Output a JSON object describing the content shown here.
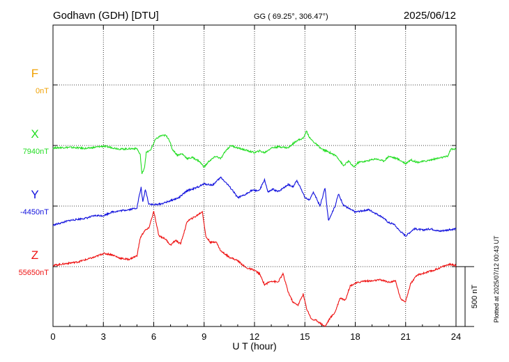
{
  "header": {
    "station": "Godhavn (GDH)  [DTU]",
    "coords": "GG ( 69.25°, 306.47°)",
    "date": "2025/06/12"
  },
  "plotted_note": "Plotted at 2025/07/12 00:43 UT",
  "scale_label": "500 nT",
  "chart_data": {
    "type": "line",
    "xlabel": "U T (hour)",
    "ylabel": "",
    "xlim": [
      0,
      24
    ],
    "xticks": [
      "0",
      "3",
      "6",
      "9",
      "12",
      "15",
      "18",
      "21",
      "24"
    ],
    "grid": true,
    "scale_bar_nT": 500,
    "series": [
      {
        "name": "F",
        "baseline_label": "0nT",
        "color": "#f0a000",
        "points": []
      },
      {
        "name": "X",
        "baseline_label": "7940nT",
        "color": "#22dd22",
        "points": [
          [
            0,
            -20
          ],
          [
            1,
            -15
          ],
          [
            2,
            -25
          ],
          [
            3,
            -5
          ],
          [
            4,
            -30
          ],
          [
            5,
            -25
          ],
          [
            5.2,
            -80
          ],
          [
            5.3,
            -240
          ],
          [
            5.45,
            -180
          ],
          [
            5.55,
            -60
          ],
          [
            5.8,
            -40
          ],
          [
            6.1,
            50
          ],
          [
            6.4,
            80
          ],
          [
            6.7,
            85
          ],
          [
            6.9,
            55
          ],
          [
            7.1,
            -30
          ],
          [
            7.4,
            -80
          ],
          [
            7.7,
            -70
          ],
          [
            8.0,
            -110
          ],
          [
            8.3,
            -100
          ],
          [
            8.7,
            -130
          ],
          [
            9.0,
            -180
          ],
          [
            9.3,
            -130
          ],
          [
            9.7,
            -90
          ],
          [
            10.0,
            -110
          ],
          [
            10.3,
            -40
          ],
          [
            10.6,
            0
          ],
          [
            11.0,
            -20
          ],
          [
            11.5,
            -40
          ],
          [
            12.0,
            -60
          ],
          [
            12.3,
            -45
          ],
          [
            12.6,
            -60
          ],
          [
            13.0,
            -20
          ],
          [
            13.5,
            -10
          ],
          [
            14.0,
            -20
          ],
          [
            14.5,
            40
          ],
          [
            14.9,
            60
          ],
          [
            15.1,
            120
          ],
          [
            15.3,
            60
          ],
          [
            15.6,
            20
          ],
          [
            16.0,
            -30
          ],
          [
            16.5,
            -60
          ],
          [
            16.9,
            -90
          ],
          [
            17.3,
            -170
          ],
          [
            17.6,
            -130
          ],
          [
            17.9,
            -180
          ],
          [
            18.2,
            -140
          ],
          [
            18.7,
            -130
          ],
          [
            19.2,
            -110
          ],
          [
            19.7,
            -130
          ],
          [
            20.0,
            -90
          ],
          [
            20.5,
            -110
          ],
          [
            21.0,
            -150
          ],
          [
            21.3,
            -120
          ],
          [
            21.7,
            -140
          ],
          [
            22.2,
            -130
          ],
          [
            22.8,
            -110
          ],
          [
            23.2,
            -100
          ],
          [
            23.5,
            -90
          ],
          [
            23.7,
            -30
          ],
          [
            24,
            -30
          ]
        ]
      },
      {
        "name": "Y",
        "baseline_label": "-4450nT",
        "color": "#1010dd",
        "points": [
          [
            0,
            -160
          ],
          [
            0.5,
            -140
          ],
          [
            1,
            -120
          ],
          [
            1.5,
            -110
          ],
          [
            2,
            -100
          ],
          [
            2.5,
            -80
          ],
          [
            3,
            -80
          ],
          [
            3.5,
            -50
          ],
          [
            4.0,
            -40
          ],
          [
            4.5,
            -30
          ],
          [
            5.0,
            -15
          ],
          [
            5.1,
            60
          ],
          [
            5.25,
            155
          ],
          [
            5.35,
            30
          ],
          [
            5.5,
            140
          ],
          [
            5.7,
            20
          ],
          [
            6,
            10
          ],
          [
            6.5,
            20
          ],
          [
            7,
            45
          ],
          [
            7.5,
            70
          ],
          [
            8,
            130
          ],
          [
            8.5,
            150
          ],
          [
            9.0,
            185
          ],
          [
            9.5,
            175
          ],
          [
            10.0,
            240
          ],
          [
            10.4,
            180
          ],
          [
            10.7,
            130
          ],
          [
            11.0,
            70
          ],
          [
            11.4,
            90
          ],
          [
            11.8,
            130
          ],
          [
            12.3,
            130
          ],
          [
            12.6,
            220
          ],
          [
            12.8,
            115
          ],
          [
            13.1,
            140
          ],
          [
            13.4,
            120
          ],
          [
            13.7,
            150
          ],
          [
            14.0,
            180
          ],
          [
            14.3,
            160
          ],
          [
            14.5,
            215
          ],
          [
            14.8,
            140
          ],
          [
            15.0,
            70
          ],
          [
            15.3,
            50
          ],
          [
            15.5,
            120
          ],
          [
            15.9,
            0
          ],
          [
            16.2,
            150
          ],
          [
            16.4,
            -120
          ],
          [
            16.6,
            -60
          ],
          [
            16.8,
            0
          ],
          [
            17.0,
            100
          ],
          [
            17.3,
            10
          ],
          [
            17.6,
            -20
          ],
          [
            18.0,
            -50
          ],
          [
            18.4,
            -40
          ],
          [
            18.8,
            -30
          ],
          [
            19.2,
            -60
          ],
          [
            19.6,
            -90
          ],
          [
            20.0,
            -140
          ],
          [
            20.3,
            -150
          ],
          [
            20.6,
            -200
          ],
          [
            21.0,
            -250
          ],
          [
            21.5,
            -190
          ],
          [
            22.0,
            -200
          ],
          [
            22.5,
            -190
          ],
          [
            23.0,
            -210
          ],
          [
            23.5,
            -200
          ],
          [
            24,
            -190
          ]
        ]
      },
      {
        "name": "Z",
        "baseline_label": "55650nT",
        "color": "#ee1111",
        "points": [
          [
            0,
            10
          ],
          [
            0.5,
            20
          ],
          [
            1,
            30
          ],
          [
            1.5,
            40
          ],
          [
            2,
            60
          ],
          [
            2.5,
            80
          ],
          [
            3,
            110
          ],
          [
            3.5,
            100
          ],
          [
            4,
            70
          ],
          [
            4.5,
            60
          ],
          [
            5.0,
            90
          ],
          [
            5.2,
            240
          ],
          [
            5.45,
            300
          ],
          [
            5.7,
            320
          ],
          [
            6.0,
            460
          ],
          [
            6.3,
            260
          ],
          [
            6.7,
            230
          ],
          [
            7.0,
            180
          ],
          [
            7.3,
            220
          ],
          [
            7.6,
            190
          ],
          [
            8.0,
            380
          ],
          [
            8.5,
            420
          ],
          [
            8.9,
            460
          ],
          [
            9.1,
            250
          ],
          [
            9.4,
            200
          ],
          [
            9.7,
            210
          ],
          [
            10.0,
            130
          ],
          [
            10.5,
            80
          ],
          [
            11.0,
            50
          ],
          [
            11.5,
            -10
          ],
          [
            12.0,
            -30
          ],
          [
            12.3,
            -60
          ],
          [
            12.6,
            -150
          ],
          [
            13.0,
            -120
          ],
          [
            13.4,
            -130
          ],
          [
            13.7,
            -60
          ],
          [
            14.0,
            -210
          ],
          [
            14.3,
            -300
          ],
          [
            14.6,
            -320
          ],
          [
            14.9,
            -230
          ],
          [
            15.1,
            -350
          ],
          [
            15.4,
            -440
          ],
          [
            15.7,
            -450
          ],
          [
            16.0,
            -480
          ],
          [
            16.2,
            -500
          ],
          [
            16.5,
            -430
          ],
          [
            16.8,
            -380
          ],
          [
            17.1,
            -260
          ],
          [
            17.4,
            -280
          ],
          [
            17.7,
            -160
          ],
          [
            18.0,
            -140
          ],
          [
            18.5,
            -120
          ],
          [
            19.0,
            -120
          ],
          [
            19.5,
            -110
          ],
          [
            20.0,
            -130
          ],
          [
            20.4,
            -120
          ],
          [
            20.7,
            -270
          ],
          [
            21.0,
            -290
          ],
          [
            21.3,
            -140
          ],
          [
            21.7,
            -70
          ],
          [
            22.2,
            -50
          ],
          [
            22.7,
            -30
          ],
          [
            23.2,
            0
          ],
          [
            23.6,
            20
          ],
          [
            24,
            10
          ]
        ]
      }
    ]
  }
}
